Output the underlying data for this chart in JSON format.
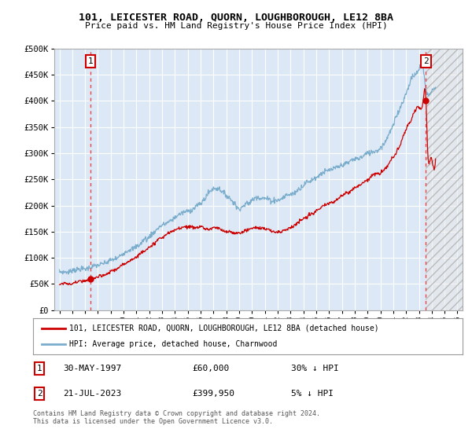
{
  "title": "101, LEICESTER ROAD, QUORN, LOUGHBOROUGH, LE12 8BA",
  "subtitle": "Price paid vs. HM Land Registry's House Price Index (HPI)",
  "ylabel_ticks": [
    "£0",
    "£50K",
    "£100K",
    "£150K",
    "£200K",
    "£250K",
    "£300K",
    "£350K",
    "£400K",
    "£450K",
    "£500K"
  ],
  "ytick_values": [
    0,
    50000,
    100000,
    150000,
    200000,
    250000,
    300000,
    350000,
    400000,
    450000,
    500000
  ],
  "ylim": [
    0,
    500000
  ],
  "xlim_start": 1994.6,
  "xlim_end": 2026.4,
  "xtick_years": [
    1995,
    1996,
    1997,
    1998,
    1999,
    2000,
    2001,
    2002,
    2003,
    2004,
    2005,
    2006,
    2007,
    2008,
    2009,
    2010,
    2011,
    2012,
    2013,
    2014,
    2015,
    2016,
    2017,
    2018,
    2019,
    2020,
    2021,
    2022,
    2023,
    2024,
    2025,
    2026
  ],
  "sale1_year": 1997.42,
  "sale1_price": 60000,
  "sale1_label": "1",
  "sale1_date": "30-MAY-1997",
  "sale1_amount": "£60,000",
  "sale1_hpi": "30% ↓ HPI",
  "sale2_year": 2023.55,
  "sale2_price": 399950,
  "sale2_label": "2",
  "sale2_date": "21-JUL-2023",
  "sale2_amount": "£399,950",
  "sale2_hpi": "5% ↓ HPI",
  "red_line_color": "#cc0000",
  "blue_line_color": "#7aadcc",
  "dashed_line_color": "#ee4444",
  "marker_color": "#cc0000",
  "bg_color": "#dce8f5",
  "grid_color": "#ffffff",
  "hatch_color": "#bbbbbb",
  "legend_line1": "101, LEICESTER ROAD, QUORN, LOUGHBOROUGH, LE12 8BA (detached house)",
  "legend_line2": "HPI: Average price, detached house, Charnwood",
  "footer": "Contains HM Land Registry data © Crown copyright and database right 2024.\nThis data is licensed under the Open Government Licence v3.0.",
  "marker_box_color": "#cc0000"
}
